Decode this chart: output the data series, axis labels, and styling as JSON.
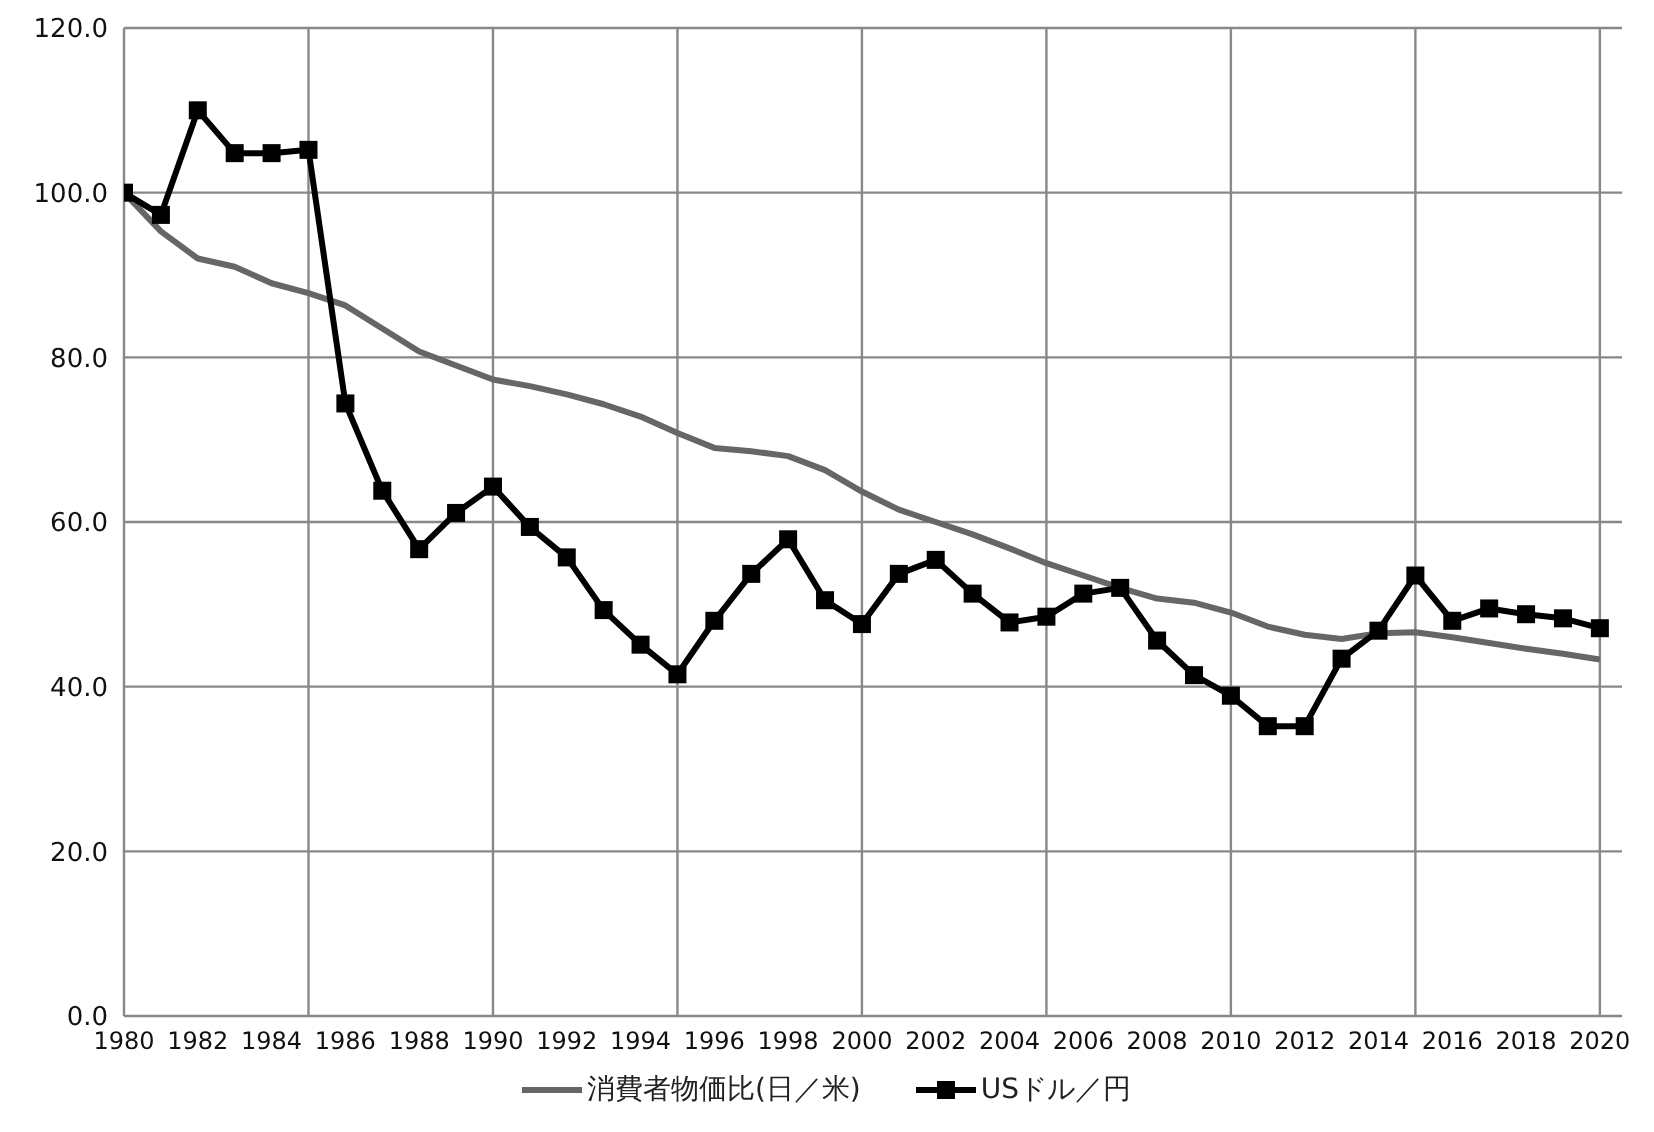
{
  "chart_data": {
    "type": "line",
    "x": [
      1980,
      1981,
      1982,
      1983,
      1984,
      1985,
      1986,
      1987,
      1988,
      1989,
      1990,
      1991,
      1992,
      1993,
      1994,
      1995,
      1996,
      1997,
      1998,
      1999,
      2000,
      2001,
      2002,
      2003,
      2004,
      2005,
      2006,
      2007,
      2008,
      2009,
      2010,
      2011,
      2012,
      2013,
      2014,
      2015,
      2016,
      2017,
      2018,
      2019,
      2020
    ],
    "series": [
      {
        "name": "消費者物価比(日／米)",
        "color": "#666666",
        "marker": "none",
        "values": [
          100,
          95.3,
          92,
          91,
          89,
          87.8,
          86.3,
          83.5,
          80.7,
          79,
          77.3,
          76.5,
          75.5,
          74.3,
          72.8,
          70.8,
          69,
          68.6,
          68,
          66.3,
          63.7,
          61.5,
          60,
          58.5,
          56.8,
          55,
          53.5,
          52,
          50.7,
          50.2,
          49,
          47.3,
          46.3,
          45.8,
          46.5,
          46.6,
          46,
          45.3,
          44.6,
          44,
          43.3
        ]
      },
      {
        "name": "USドル／円",
        "color": "#000000",
        "marker": "square",
        "values": [
          100,
          97.3,
          110,
          104.8,
          104.8,
          105.2,
          74.4,
          63.8,
          56.7,
          61.1,
          64.3,
          59.4,
          55.7,
          49.3,
          45.1,
          41.5,
          48,
          53.7,
          57.9,
          50.5,
          47.6,
          53.7,
          55.4,
          51.3,
          47.8,
          48.5,
          51.3,
          52,
          45.6,
          41.4,
          38.9,
          35.2,
          35.2,
          43.4,
          46.8,
          53.5,
          48,
          49.5,
          48.8,
          48.3,
          47.1
        ]
      }
    ],
    "xlim": [
      1980,
      2020.6
    ],
    "xticks": [
      1980,
      1982,
      1984,
      {
        "value": 1985,
        "label": null
      },
      1986,
      1988,
      1990,
      1992,
      1994,
      {
        "value": 1995,
        "label": null
      },
      1996,
      1998,
      2000,
      2002,
      2004,
      {
        "value": 2005,
        "label": null
      },
      2006,
      2008,
      2010,
      2012,
      2014,
      {
        "value": 2015,
        "label": null
      },
      2016,
      2018,
      2020
    ],
    "ylim": [
      0,
      120
    ],
    "yticks": [
      {
        "value": 0,
        "label": "0.0"
      },
      {
        "value": 20,
        "label": "20.0"
      },
      {
        "value": 40,
        "label": "40.0"
      },
      {
        "value": 60,
        "label": "60.0"
      },
      {
        "value": 80,
        "label": "80.0"
      },
      {
        "value": 100,
        "label": "100.0"
      },
      {
        "value": 120,
        "label": "120.0"
      }
    ],
    "grid": true,
    "legend": "bottom"
  }
}
